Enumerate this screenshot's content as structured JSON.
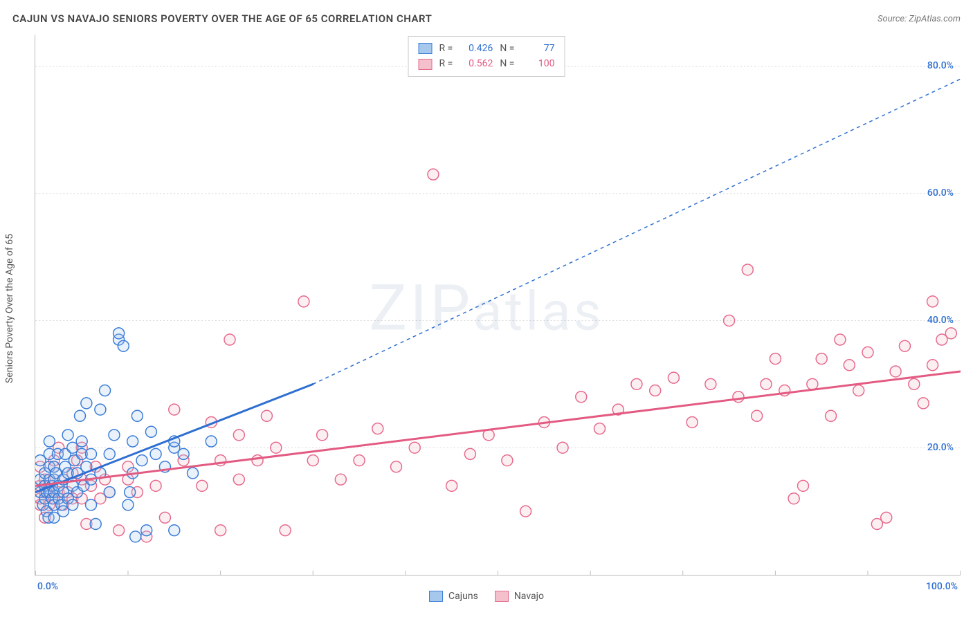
{
  "title": "CAJUN VS NAVAJO SENIORS POVERTY OVER THE AGE OF 65 CORRELATION CHART",
  "source": "Source: ZipAtlas.com",
  "ylabel": "Seniors Poverty Over the Age of 65",
  "watermark": "ZIPatlas",
  "chart": {
    "type": "scatter",
    "background_color": "#ffffff",
    "grid_color": "#d8d8d8",
    "axis_color": "#bbbbbb",
    "xlim": [
      0,
      100
    ],
    "ylim": [
      0,
      85
    ],
    "xticks": [
      0,
      10,
      20,
      30,
      40,
      50,
      60,
      70,
      80,
      90,
      100
    ],
    "yticks": [
      20,
      40,
      60,
      80
    ],
    "ytick_labels": [
      "20.0%",
      "40.0%",
      "60.0%",
      "80.0%"
    ],
    "xaxis_min_label": "0.0%",
    "xaxis_max_label": "100.0%",
    "marker_radius": 8,
    "marker_stroke_width": 1.5,
    "marker_fill_opacity": 0.25,
    "trend_line_width": 3,
    "trend_dash_width": 1.5,
    "label_fontsize": 14,
    "title_fontsize": 15
  },
  "series": [
    {
      "key": "cajuns",
      "label": "Cajuns",
      "fill": "#a6c8ec",
      "stroke": "#3b7dd8",
      "trend_color": "#2e6fd1",
      "value_color": "#2e6fd1",
      "R": "0.426",
      "N": "77",
      "trend": {
        "x1": 0,
        "y1": 13,
        "x2": 30,
        "y2": 30,
        "dash_to_x": 100,
        "dash_to_y": 78
      },
      "points": [
        [
          0.5,
          13
        ],
        [
          0.5,
          15
        ],
        [
          0.5,
          18
        ],
        [
          0.8,
          11
        ],
        [
          1,
          14
        ],
        [
          1,
          16
        ],
        [
          1,
          12
        ],
        [
          1.2,
          10
        ],
        [
          1.2,
          13
        ],
        [
          1.4,
          9
        ],
        [
          1.5,
          13
        ],
        [
          1.5,
          15
        ],
        [
          1.5,
          17
        ],
        [
          1.5,
          19
        ],
        [
          1.5,
          21
        ],
        [
          1.8,
          14
        ],
        [
          1.8,
          12
        ],
        [
          2,
          9
        ],
        [
          2,
          11
        ],
        [
          2,
          13
        ],
        [
          2,
          15
        ],
        [
          2,
          17
        ],
        [
          2.2,
          16
        ],
        [
          2.4,
          19
        ],
        [
          2.5,
          12
        ],
        [
          2.5,
          14
        ],
        [
          2.8,
          11
        ],
        [
          3,
          10
        ],
        [
          3,
          13
        ],
        [
          3,
          15
        ],
        [
          3.2,
          17
        ],
        [
          3.2,
          19
        ],
        [
          3.5,
          12
        ],
        [
          3.5,
          16
        ],
        [
          3.5,
          22
        ],
        [
          4,
          11
        ],
        [
          4,
          14
        ],
        [
          4,
          20
        ],
        [
          4.2,
          18
        ],
        [
          4.5,
          13
        ],
        [
          4.5,
          16
        ],
        [
          4.8,
          25
        ],
        [
          5,
          19
        ],
        [
          5,
          21
        ],
        [
          5.2,
          14
        ],
        [
          5.5,
          17
        ],
        [
          5.5,
          27
        ],
        [
          6,
          11
        ],
        [
          6,
          15
        ],
        [
          6,
          19
        ],
        [
          6.5,
          8
        ],
        [
          7,
          16
        ],
        [
          7,
          26
        ],
        [
          7.5,
          29
        ],
        [
          8,
          13
        ],
        [
          8,
          19
        ],
        [
          8.5,
          22
        ],
        [
          9,
          37
        ],
        [
          9,
          38
        ],
        [
          9.5,
          36
        ],
        [
          10,
          11
        ],
        [
          10.2,
          13
        ],
        [
          10.5,
          16
        ],
        [
          10.5,
          21
        ],
        [
          10.8,
          6
        ],
        [
          11,
          25
        ],
        [
          11.5,
          18
        ],
        [
          12,
          7
        ],
        [
          12.5,
          22.5
        ],
        [
          13,
          19
        ],
        [
          14,
          17
        ],
        [
          15,
          7
        ],
        [
          15,
          20
        ],
        [
          15,
          21
        ],
        [
          16,
          19
        ],
        [
          17,
          16
        ],
        [
          19,
          21
        ]
      ]
    },
    {
      "key": "navajo",
      "label": "Navajo",
      "fill": "#f3c0cc",
      "stroke": "#e66a8d",
      "trend_color": "#e35a82",
      "value_color": "#e35a82",
      "R": "0.562",
      "N": "100",
      "trend": {
        "x1": 0,
        "y1": 14,
        "x2": 100,
        "y2": 32,
        "dash_to_x": 100,
        "dash_to_y": 32
      },
      "points": [
        [
          0.5,
          11
        ],
        [
          0.5,
          12
        ],
        [
          0.5,
          14
        ],
        [
          0.5,
          17
        ],
        [
          1,
          9
        ],
        [
          1,
          13
        ],
        [
          1,
          15
        ],
        [
          1.5,
          11
        ],
        [
          1.5,
          14
        ],
        [
          2,
          12
        ],
        [
          2,
          15
        ],
        [
          2,
          17
        ],
        [
          2,
          18
        ],
        [
          2.5,
          13
        ],
        [
          2.5,
          20
        ],
        [
          3,
          11
        ],
        [
          3,
          15
        ],
        [
          3.5,
          13
        ],
        [
          4,
          12
        ],
        [
          4,
          16
        ],
        [
          4.5,
          18
        ],
        [
          5,
          12
        ],
        [
          5,
          15
        ],
        [
          5,
          20
        ],
        [
          5.5,
          8
        ],
        [
          6,
          14
        ],
        [
          6.5,
          17
        ],
        [
          7,
          12
        ],
        [
          7.5,
          15
        ],
        [
          8,
          13
        ],
        [
          9,
          7
        ],
        [
          10,
          15
        ],
        [
          10,
          17
        ],
        [
          11,
          13
        ],
        [
          12,
          6
        ],
        [
          13,
          14
        ],
        [
          14,
          9
        ],
        [
          15,
          26
        ],
        [
          16,
          18
        ],
        [
          18,
          14
        ],
        [
          19,
          24
        ],
        [
          20,
          18
        ],
        [
          20,
          7
        ],
        [
          21,
          37
        ],
        [
          22,
          15
        ],
        [
          22,
          22
        ],
        [
          24,
          18
        ],
        [
          25,
          25
        ],
        [
          26,
          20
        ],
        [
          27,
          7
        ],
        [
          29,
          43
        ],
        [
          30,
          18
        ],
        [
          31,
          22
        ],
        [
          33,
          15
        ],
        [
          35,
          18
        ],
        [
          37,
          23
        ],
        [
          39,
          17
        ],
        [
          41,
          20
        ],
        [
          43,
          63
        ],
        [
          45,
          14
        ],
        [
          47,
          19
        ],
        [
          49,
          22
        ],
        [
          51,
          18
        ],
        [
          53,
          10
        ],
        [
          55,
          24
        ],
        [
          57,
          20
        ],
        [
          59,
          28
        ],
        [
          61,
          23
        ],
        [
          63,
          26
        ],
        [
          65,
          30
        ],
        [
          67,
          29
        ],
        [
          69,
          31
        ],
        [
          71,
          24
        ],
        [
          73,
          30
        ],
        [
          75,
          40
        ],
        [
          76,
          28
        ],
        [
          77,
          48
        ],
        [
          78,
          25
        ],
        [
          79,
          30
        ],
        [
          80,
          34
        ],
        [
          81,
          29
        ],
        [
          82,
          12
        ],
        [
          83,
          14
        ],
        [
          84,
          30
        ],
        [
          85,
          34
        ],
        [
          86,
          25
        ],
        [
          87,
          37
        ],
        [
          88,
          33
        ],
        [
          89,
          29
        ],
        [
          90,
          35
        ],
        [
          91,
          8
        ],
        [
          92,
          9
        ],
        [
          93,
          32
        ],
        [
          94,
          36
        ],
        [
          95,
          30
        ],
        [
          96,
          27
        ],
        [
          97,
          33
        ],
        [
          97,
          43
        ],
        [
          98,
          37
        ],
        [
          99,
          38
        ]
      ]
    }
  ],
  "legend_bottom": [
    {
      "label": "Cajuns",
      "fill": "#a6c8ec",
      "stroke": "#3b7dd8"
    },
    {
      "label": "Navajo",
      "fill": "#f3c0cc",
      "stroke": "#e66a8d"
    }
  ],
  "legend_top_stats": [
    "R =",
    "N ="
  ]
}
